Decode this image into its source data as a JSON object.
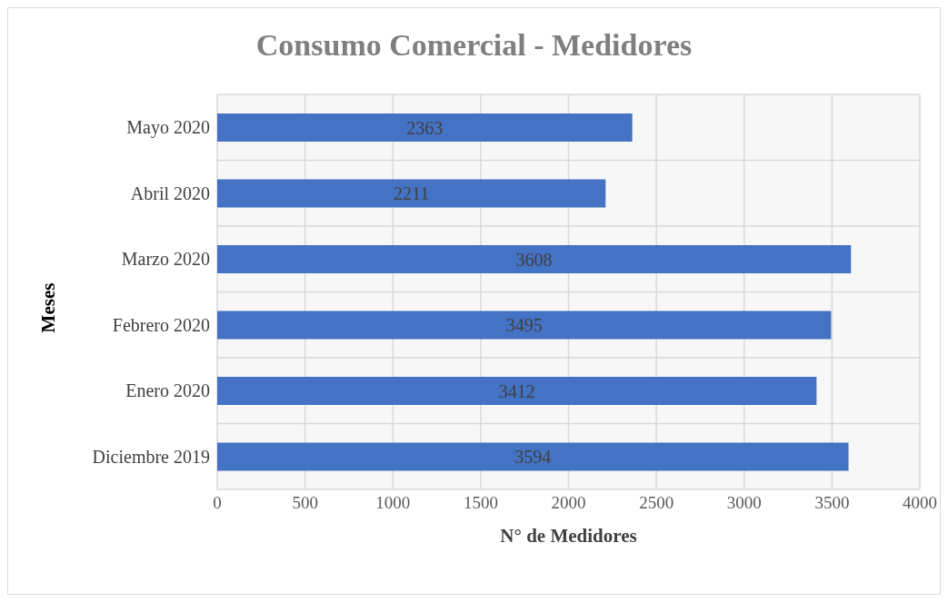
{
  "chart_data": {
    "type": "bar",
    "orientation": "horizontal",
    "title": "Consumo Comercial - Medidores",
    "xlabel": "N° de Medidores",
    "ylabel": "Meses",
    "categories": [
      "Mayo 2020",
      "Abril 2020",
      "Marzo 2020",
      "Febrero 2020",
      "Enero 2020",
      "Diciembre 2019"
    ],
    "values": [
      2363,
      2211,
      3608,
      3495,
      3412,
      3594
    ],
    "color": "#4472c4",
    "xlim": [
      0,
      4000
    ],
    "xticks": [
      0,
      500,
      1000,
      1500,
      2000,
      2500,
      3000,
      3500,
      4000
    ],
    "grid": true,
    "data_labels": true
  }
}
